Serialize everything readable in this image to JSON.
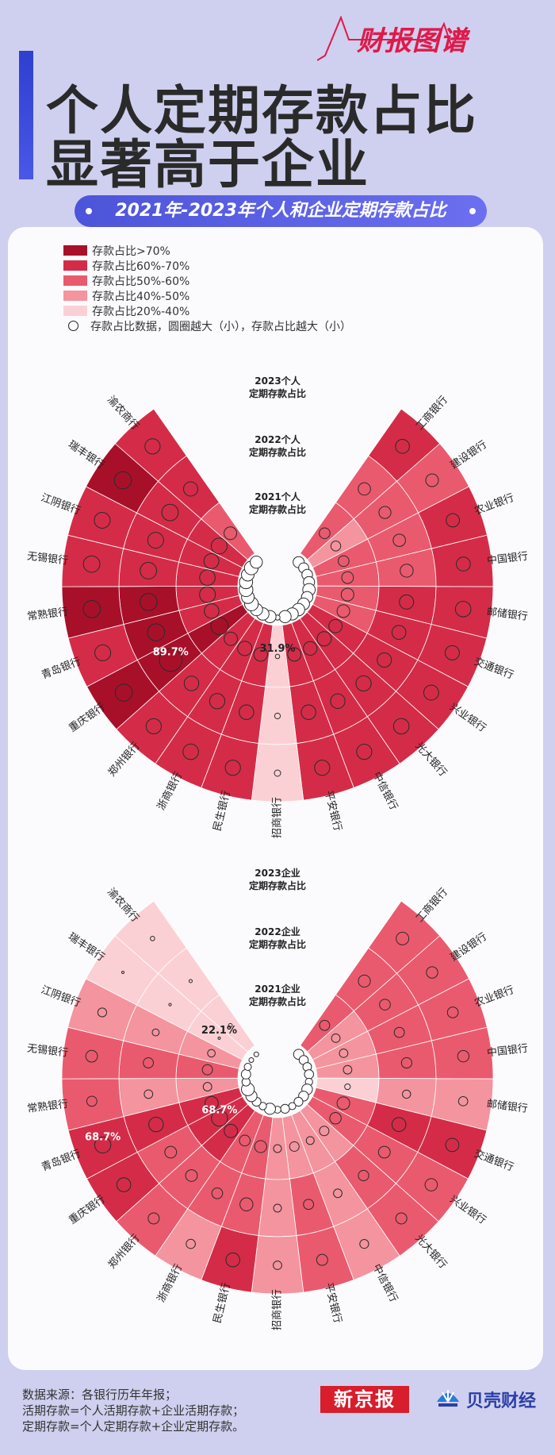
{
  "brand_tag": "财报图谱",
  "title_lines": [
    "个人定期存款占比",
    "显著高于企业"
  ],
  "subtitle": "2021年-2023年个人和企业定期存款占比",
  "legend": {
    "items": [
      {
        "label": "存款占比>70%",
        "color": "#a8102a"
      },
      {
        "label": "存款占比60%-70%",
        "color": "#d42c48"
      },
      {
        "label": "存款占比50%-60%",
        "color": "#ea5a6e"
      },
      {
        "label": "存款占比40%-50%",
        "color": "#f4949f"
      },
      {
        "label": "存款占比20%-40%",
        "color": "#fbd0d5"
      }
    ],
    "circle_note": "存款占比数据，圆圈越大（小），存款占比越大（小）"
  },
  "chart_data": [
    {
      "type": "radial_heatmap",
      "name": "个人",
      "ring_labels": [
        [
          "2023个人",
          "定期存款占比"
        ],
        [
          "2022个人",
          "定期存款占比"
        ],
        [
          "2021个人",
          "定期存款占比"
        ]
      ],
      "years": [
        "2023",
        "2022",
        "2021"
      ],
      "categories": [
        "工商银行",
        "建设银行",
        "农业银行",
        "中国银行",
        "邮储银行",
        "交通银行",
        "兴业银行",
        "光大银行",
        "中信银行",
        "平安银行",
        "招商银行",
        "民生银行",
        "浙商银行",
        "郑州银行",
        "重庆银行",
        "青岛银行",
        "常熟银行",
        "无锡银行",
        "江阴银行",
        "瑞丰银行",
        "渝农商行"
      ],
      "values": {
        "2023": [
          62,
          58,
          60,
          62,
          67,
          63,
          65,
          67,
          66,
          66,
          38,
          66,
          67,
          66,
          72,
          68,
          72,
          70,
          68,
          72,
          66
        ],
        "2022": [
          57,
          56,
          57,
          59,
          63,
          62,
          63,
          66,
          64,
          64,
          36,
          64,
          66,
          64,
          89.7,
          72,
          72,
          70,
          68,
          70,
          63
        ],
        "2021": [
          52,
          49,
          52,
          55,
          58,
          58,
          60,
          63,
          61,
          60,
          31.9,
          61,
          63,
          60,
          72,
          64,
          68,
          67,
          65,
          68,
          58
        ]
      },
      "annotations": [
        {
          "text": "89.7%"
        },
        {
          "text": "31.9%"
        }
      ]
    },
    {
      "type": "radial_heatmap",
      "name": "企业",
      "ring_labels": [
        [
          "2023企业",
          "定期存款占比"
        ],
        [
          "2022企业",
          "定期存款占比"
        ],
        [
          "2021企业",
          "定期存款占比"
        ]
      ],
      "years": [
        "2023",
        "2022",
        "2021"
      ],
      "categories": [
        "工商银行",
        "建设银行",
        "农业银行",
        "中国银行",
        "邮储银行",
        "交通银行",
        "兴业银行",
        "光大银行",
        "中信银行",
        "平安银行",
        "招商银行",
        "民生银行",
        "浙商银行",
        "郑州银行",
        "重庆银行",
        "青岛银行",
        "常熟银行",
        "无锡银行",
        "江阴银行",
        "瑞丰银行",
        "渝农商行"
      ],
      "values": {
        "2023": [
          58,
          54,
          52,
          54,
          47,
          60,
          57,
          53,
          46,
          53,
          45,
          62,
          47,
          53,
          62,
          68.7,
          50,
          55,
          46,
          25,
          32
        ],
        "2022": [
          56,
          52,
          50,
          51,
          44,
          62,
          55,
          51,
          45,
          50,
          43,
          59,
          52,
          55,
          55,
          64,
          45,
          50,
          40,
          26,
          28
        ],
        "2021": [
          50,
          45,
          45,
          45,
          36,
          58,
          54,
          48,
          43,
          48,
          43,
          56,
          52,
          60,
          68.7,
          60,
          45,
          50,
          42,
          22.1,
          30
        ]
      },
      "annotations": [
        {
          "text": "68.7%"
        },
        {
          "text": "68.7%"
        },
        {
          "text": "22.1%"
        }
      ]
    }
  ],
  "footer": {
    "lines": [
      "数据来源：各银行历年年报；",
      "活期存款=个人活期存款+企业活期存款；",
      "定期存款=个人定期存款+企业定期存款。"
    ],
    "logo_xjb": "新京报",
    "logo_bk": "贝壳财经"
  }
}
